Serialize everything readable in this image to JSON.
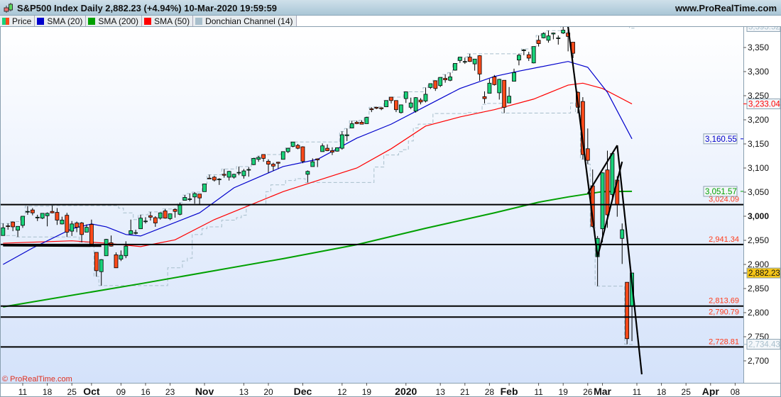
{
  "header": {
    "title": "S&P500 Index Daily 2,882.23 (+4.94%) 10-Mar-2020 19:59:59",
    "site": "www.ProRealTime.com",
    "copyright": "© ProRealTime.com"
  },
  "legend": [
    {
      "label": "Price",
      "color": "#19d27a",
      "color2": "#ff4a1a"
    },
    {
      "label": "SMA (20)",
      "color": "#0000cc"
    },
    {
      "label": "SMA (200)",
      "color": "#00a000"
    },
    {
      "label": "SMA (50)",
      "color": "#ff0000"
    },
    {
      "label": "Donchian Channel (14)",
      "color": "#a8bfcc"
    }
  ],
  "chart_data": {
    "type": "candlestick",
    "title": "S&P500 Index Daily",
    "ylim": [
      2650,
      3420
    ],
    "grid": false,
    "colors": {
      "up": "#19d27a",
      "down": "#ff4a1a",
      "sma20": "#0000cc",
      "sma50": "#ff0000",
      "sma200": "#00a000",
      "donchian": "#a8bfcc",
      "levels": "#000000",
      "level_labels": "#ff3b1a",
      "price_tag": "#f5c518"
    },
    "yticks": [
      "3,350",
      "3,300",
      "3,250",
      "3,200",
      "3,150",
      "3,100",
      "3,050",
      "3,000",
      "2,950",
      "2,900",
      "2,850",
      "2,800",
      "2,750",
      "2,700"
    ],
    "ytick_values": [
      3350,
      3300,
      3250,
      3200,
      3150,
      3100,
      3050,
      3000,
      2950,
      2900,
      2850,
      2800,
      2750,
      2700
    ],
    "xticks": [
      [
        "11",
        "2019-09-11"
      ],
      [
        "18",
        "2019-09-18"
      ],
      [
        "25",
        "2019-09-25"
      ],
      [
        "Oct",
        "2019-10-01"
      ],
      [
        "09",
        "2019-10-09"
      ],
      [
        "16",
        "2019-10-16"
      ],
      [
        "23",
        "2019-10-23"
      ],
      [
        "Nov",
        "2019-11-01"
      ],
      [
        "13",
        "2019-11-13"
      ],
      [
        "20",
        "2019-11-20"
      ],
      [
        "Dec",
        "2019-12-02"
      ],
      [
        "12",
        "2019-12-12"
      ],
      [
        "19",
        "2019-12-19"
      ],
      [
        "2020",
        "2020-01-02"
      ],
      [
        "13",
        "2020-01-13"
      ],
      [
        "21",
        "2020-01-21"
      ],
      [
        "28",
        "2020-01-28"
      ],
      [
        "Feb",
        "2020-02-03"
      ],
      [
        "11",
        "2020-02-11"
      ],
      [
        "19",
        "2020-02-19"
      ],
      [
        "26",
        "2020-02-26"
      ],
      [
        "Mar",
        "2020-03-02"
      ],
      [
        "11",
        "2020-03-11"
      ],
      [
        "18",
        "2020-03-18"
      ],
      [
        "25",
        "2020-03-25"
      ],
      [
        "Apr",
        "2020-04-01"
      ],
      [
        "08",
        "2020-04-08"
      ]
    ],
    "candles_columns": [
      "date",
      "open",
      "high",
      "low",
      "close"
    ],
    "candles": [
      [
        "2019-09-05",
        2960,
        2985,
        2960,
        2976
      ],
      [
        "2019-09-06",
        2980,
        2985,
        2972,
        2979
      ],
      [
        "2019-09-09",
        2988,
        2989,
        2969,
        2978
      ],
      [
        "2019-09-10",
        2971,
        2979,
        2957,
        2979
      ],
      [
        "2019-09-11",
        2981,
        3000,
        2976,
        3000
      ],
      [
        "2019-09-12",
        3010,
        3021,
        3003,
        3010
      ],
      [
        "2019-09-13",
        3013,
        3017,
        3002,
        3007
      ],
      [
        "2019-09-16",
        2997,
        3003,
        2990,
        2998
      ],
      [
        "2019-09-17",
        2996,
        3006,
        2994,
        3006
      ],
      [
        "2019-09-18",
        3001,
        3008,
        2979,
        3006
      ],
      [
        "2019-09-19",
        3010,
        3022,
        3006,
        3007
      ],
      [
        "2019-09-20",
        3008,
        3017,
        2982,
        2992
      ],
      [
        "2019-09-23",
        2984,
        2999,
        2983,
        2992
      ],
      [
        "2019-09-24",
        3002,
        3007,
        2957,
        2967
      ],
      [
        "2019-09-25",
        2969,
        2990,
        2959,
        2984
      ],
      [
        "2019-09-26",
        2986,
        2989,
        2967,
        2977
      ],
      [
        "2019-09-27",
        2986,
        2988,
        2946,
        2962
      ],
      [
        "2019-09-30",
        2967,
        2983,
        2967,
        2977
      ],
      [
        "2019-10-01",
        2983,
        2993,
        2938,
        2940
      ],
      [
        "2019-10-02",
        2925,
        2925,
        2875,
        2887
      ],
      [
        "2019-10-03",
        2885,
        2911,
        2856,
        2910
      ],
      [
        "2019-10-04",
        2918,
        2953,
        2918,
        2952
      ],
      [
        "2019-10-07",
        2945,
        2960,
        2937,
        2938
      ],
      [
        "2019-10-08",
        2920,
        2925,
        2893,
        2893
      ],
      [
        "2019-10-09",
        2911,
        2929,
        2907,
        2919
      ],
      [
        "2019-10-10",
        2918,
        2948,
        2913,
        2938
      ],
      [
        "2019-10-11",
        2963,
        2993,
        2963,
        2970
      ],
      [
        "2019-10-14",
        2965,
        2972,
        2962,
        2966
      ],
      [
        "2019-10-15",
        2974,
        3003,
        2974,
        2996
      ],
      [
        "2019-10-16",
        2989,
        2998,
        2985,
        2990
      ],
      [
        "2019-10-17",
        3001,
        3009,
        2991,
        2998
      ],
      [
        "2019-10-18",
        2997,
        3000,
        2978,
        2986
      ],
      [
        "2019-10-21",
        2996,
        3008,
        2993,
        3007
      ],
      [
        "2019-10-22",
        3011,
        3015,
        2995,
        2996
      ],
      [
        "2019-10-23",
        2995,
        3005,
        2992,
        3005
      ],
      [
        "2019-10-24",
        3014,
        3016,
        2997,
        3010
      ],
      [
        "2019-10-25",
        3004,
        3028,
        3002,
        3023
      ],
      [
        "2019-10-28",
        3033,
        3044,
        3033,
        3039
      ],
      [
        "2019-10-29",
        3036,
        3047,
        3031,
        3036
      ],
      [
        "2019-10-30",
        3040,
        3050,
        3026,
        3047
      ],
      [
        "2019-10-31",
        3046,
        3046,
        3024,
        3038
      ],
      [
        "2019-11-01",
        3051,
        3067,
        3051,
        3067
      ],
      [
        "2019-11-04",
        3079,
        3086,
        3078,
        3078
      ],
      [
        "2019-11-05",
        3081,
        3084,
        3072,
        3075
      ],
      [
        "2019-11-06",
        3076,
        3079,
        3065,
        3077
      ],
      [
        "2019-11-07",
        3087,
        3098,
        3080,
        3085
      ],
      [
        "2019-11-08",
        3081,
        3094,
        3074,
        3093
      ],
      [
        "2019-11-11",
        3081,
        3088,
        3078,
        3087
      ],
      [
        "2019-11-12",
        3090,
        3103,
        3085,
        3091
      ],
      [
        "2019-11-13",
        3084,
        3098,
        3078,
        3094
      ],
      [
        "2019-11-14",
        3097,
        3102,
        3082,
        3097
      ],
      [
        "2019-11-15",
        3107,
        3121,
        3106,
        3120
      ],
      [
        "2019-11-18",
        3118,
        3125,
        3113,
        3122
      ],
      [
        "2019-11-19",
        3128,
        3128,
        3113,
        3120
      ],
      [
        "2019-11-20",
        3114,
        3118,
        3090,
        3108
      ],
      [
        "2019-11-21",
        3108,
        3111,
        3094,
        3104
      ],
      [
        "2019-11-22",
        3112,
        3113,
        3099,
        3110
      ],
      [
        "2019-11-25",
        3118,
        3133,
        3118,
        3134
      ],
      [
        "2019-11-26",
        3134,
        3142,
        3131,
        3141
      ],
      [
        "2019-11-27",
        3145,
        3154,
        3143,
        3154
      ],
      [
        "2019-11-29",
        3147,
        3150,
        3139,
        3141
      ],
      [
        "2019-12-02",
        3144,
        3145,
        3110,
        3114
      ],
      [
        "2019-12-03",
        3087,
        3095,
        3070,
        3093
      ],
      [
        "2019-12-04",
        3103,
        3120,
        3103,
        3113
      ],
      [
        "2019-12-05",
        3119,
        3120,
        3102,
        3117
      ],
      [
        "2019-12-06",
        3134,
        3151,
        3134,
        3146
      ],
      [
        "2019-12-09",
        3141,
        3149,
        3135,
        3136
      ],
      [
        "2019-12-10",
        3136,
        3143,
        3127,
        3133
      ],
      [
        "2019-12-11",
        3135,
        3143,
        3134,
        3142
      ],
      [
        "2019-12-12",
        3141,
        3176,
        3138,
        3169
      ],
      [
        "2019-12-13",
        3167,
        3182,
        3156,
        3169
      ],
      [
        "2019-12-16",
        3183,
        3198,
        3183,
        3192
      ],
      [
        "2019-12-17",
        3195,
        3198,
        3191,
        3192
      ],
      [
        "2019-12-18",
        3195,
        3199,
        3191,
        3191
      ],
      [
        "2019-12-19",
        3192,
        3206,
        3192,
        3205
      ],
      [
        "2019-12-20",
        3223,
        3226,
        3216,
        3221
      ],
      [
        "2019-12-23",
        3226,
        3227,
        3222,
        3224
      ],
      [
        "2019-12-24",
        3225,
        3226,
        3220,
        3223
      ],
      [
        "2019-12-26",
        3227,
        3240,
        3227,
        3240
      ],
      [
        "2019-12-27",
        3247,
        3247,
        3234,
        3240
      ],
      [
        "2019-12-30",
        3240,
        3240,
        3216,
        3221
      ],
      [
        "2019-12-31",
        3215,
        3231,
        3213,
        3231
      ],
      [
        "2020-01-02",
        3244,
        3258,
        3235,
        3258
      ],
      [
        "2020-01-03",
        3226,
        3246,
        3222,
        3235
      ],
      [
        "2020-01-06",
        3218,
        3247,
        3215,
        3246
      ],
      [
        "2020-01-07",
        3241,
        3245,
        3232,
        3237
      ],
      [
        "2020-01-08",
        3239,
        3267,
        3236,
        3253
      ],
      [
        "2020-01-09",
        3267,
        3275,
        3264,
        3275
      ],
      [
        "2020-01-10",
        3281,
        3282,
        3260,
        3265
      ],
      [
        "2020-01-13",
        3271,
        3288,
        3268,
        3288
      ],
      [
        "2020-01-14",
        3286,
        3294,
        3277,
        3283
      ],
      [
        "2020-01-15",
        3282,
        3298,
        3280,
        3289
      ],
      [
        "2020-01-16",
        3303,
        3317,
        3302,
        3317
      ],
      [
        "2020-01-17",
        3323,
        3330,
        3318,
        3330
      ],
      [
        "2020-01-21",
        3321,
        3329,
        3316,
        3321
      ],
      [
        "2020-01-22",
        3330,
        3337,
        3320,
        3321
      ],
      [
        "2020-01-23",
        3316,
        3326,
        3302,
        3326
      ],
      [
        "2020-01-24",
        3333,
        3334,
        3281,
        3295
      ],
      [
        "2020-01-27",
        3248,
        3259,
        3234,
        3244
      ],
      [
        "2020-01-28",
        3255,
        3285,
        3255,
        3276
      ],
      [
        "2020-01-29",
        3289,
        3293,
        3271,
        3273
      ],
      [
        "2020-01-30",
        3256,
        3285,
        3242,
        3284
      ],
      [
        "2020-01-31",
        3282,
        3282,
        3214,
        3226
      ],
      [
        "2020-02-03",
        3235,
        3268,
        3235,
        3249
      ],
      [
        "2020-02-04",
        3280,
        3306,
        3280,
        3298
      ],
      [
        "2020-02-05",
        3324,
        3337,
        3313,
        3334
      ],
      [
        "2020-02-06",
        3344,
        3347,
        3334,
        3345
      ],
      [
        "2020-02-07",
        3335,
        3341,
        3322,
        3328
      ],
      [
        "2020-02-10",
        3318,
        3352,
        3317,
        3352
      ],
      [
        "2020-02-11",
        3365,
        3375,
        3352,
        3358
      ],
      [
        "2020-02-12",
        3370,
        3381,
        3369,
        3379
      ],
      [
        "2020-02-13",
        3365,
        3385,
        3360,
        3374
      ],
      [
        "2020-02-14",
        3378,
        3381,
        3367,
        3380
      ],
      [
        "2020-02-18",
        3370,
        3375,
        3356,
        3370
      ],
      [
        "2020-02-19",
        3380,
        3393.52,
        3378,
        3386
      ],
      [
        "2020-02-20",
        3380,
        3390,
        3342,
        3373
      ],
      [
        "2020-02-21",
        3361,
        3361,
        3328,
        3338
      ],
      [
        "2020-02-24",
        3257,
        3259,
        3214,
        3226
      ],
      [
        "2020-02-25",
        3238,
        3247,
        3118,
        3128
      ],
      [
        "2020-02-26",
        3140,
        3182,
        3108,
        3116
      ],
      [
        "2020-02-27",
        3063,
        3097,
        2977,
        2979
      ],
      [
        "2020-02-28",
        2916,
        2959,
        2855,
        2954
      ],
      [
        "2020-03-02",
        2974,
        3091,
        2946,
        3090
      ],
      [
        "2020-03-03",
        3096,
        3136,
        2976,
        3003
      ],
      [
        "2020-03-04",
        3045,
        3130,
        3034,
        3130
      ],
      [
        "2020-03-05",
        3075,
        3083,
        2999,
        3024
      ],
      [
        "2020-03-06",
        2954,
        2985,
        2901,
        2972
      ],
      [
        "2020-03-09",
        2863,
        2863,
        2734.43,
        2746
      ],
      [
        "2020-03-10",
        2813,
        2882.23,
        2741,
        2882.23
      ]
    ],
    "sma20": [
      [
        "2019-09-05",
        2900
      ],
      [
        "2019-09-13",
        2934
      ],
      [
        "2019-09-25",
        2974
      ],
      [
        "2019-10-01",
        2984
      ],
      [
        "2019-10-04",
        2978
      ],
      [
        "2019-10-10",
        2962
      ],
      [
        "2019-10-15",
        2959
      ],
      [
        "2019-10-31",
        3007
      ],
      [
        "2019-11-11",
        3059
      ],
      [
        "2019-11-25",
        3103
      ],
      [
        "2019-12-05",
        3118
      ],
      [
        "2019-12-17",
        3162
      ],
      [
        "2019-12-27",
        3191
      ],
      [
        "2020-01-08",
        3228
      ],
      [
        "2020-01-17",
        3265
      ],
      [
        "2020-01-29",
        3290
      ],
      [
        "2020-02-05",
        3301
      ],
      [
        "2020-02-11",
        3309
      ],
      [
        "2020-02-20",
        3321
      ],
      [
        "2020-02-26",
        3309
      ],
      [
        "2020-03-03",
        3257
      ],
      [
        "2020-03-10",
        3160.55
      ]
    ],
    "sma50": [
      [
        "2019-09-05",
        2944
      ],
      [
        "2019-09-25",
        2949
      ],
      [
        "2019-10-04",
        2944
      ],
      [
        "2019-10-15",
        2937
      ],
      [
        "2019-10-24",
        2951
      ],
      [
        "2019-11-05",
        2993
      ],
      [
        "2019-11-14",
        3022
      ],
      [
        "2019-11-25",
        3051
      ],
      [
        "2019-12-05",
        3074
      ],
      [
        "2019-12-17",
        3100
      ],
      [
        "2019-12-27",
        3140
      ],
      [
        "2020-01-08",
        3187
      ],
      [
        "2020-01-17",
        3206
      ],
      [
        "2020-01-29",
        3221
      ],
      [
        "2020-02-10",
        3243
      ],
      [
        "2020-02-20",
        3272
      ],
      [
        "2020-02-25",
        3276
      ],
      [
        "2020-03-02",
        3265
      ],
      [
        "2020-03-10",
        3233.04
      ]
    ],
    "sma200": [
      [
        "2019-09-05",
        2812
      ],
      [
        "2019-10-15",
        2860
      ],
      [
        "2019-11-05",
        2887
      ],
      [
        "2019-11-25",
        2912
      ],
      [
        "2019-12-17",
        2941
      ],
      [
        "2020-01-08",
        2975
      ],
      [
        "2020-01-29",
        3007
      ],
      [
        "2020-02-11",
        3029
      ],
      [
        "2020-02-20",
        3040
      ],
      [
        "2020-03-02",
        3051
      ],
      [
        "2020-03-10",
        3051.57
      ]
    ],
    "donchian_period": 14,
    "levels": [
      {
        "value": 3024.09,
        "label": "3,024.09"
      },
      {
        "value": 2941.34,
        "label": "2,941.34"
      },
      {
        "value": 2813.69,
        "label": "2,813.69"
      },
      {
        "value": 2790.79,
        "label": "2,790.79"
      },
      {
        "value": 2728.81,
        "label": "2,728.81"
      }
    ],
    "trendlines": [
      [
        [
          "2019-09-05",
          2939
        ],
        [
          "2019-10-03",
          2938
        ]
      ],
      [
        [
          "2020-02-20",
          3393
        ],
        [
          "2020-02-28",
          2916
        ]
      ],
      [
        [
          "2020-02-26",
          3047
        ],
        [
          "2020-03-05",
          3147
        ]
      ],
      [
        [
          "2020-02-28",
          2916
        ],
        [
          "2020-03-06",
          3113
        ]
      ],
      [
        [
          "2020-03-05",
          3147
        ],
        [
          "2020-03-12",
          2672
        ]
      ]
    ],
    "axis_tags": [
      {
        "value": 3393.52,
        "label": "3,393.52",
        "kind": "donchian"
      },
      {
        "value": 3233.04,
        "label": "3,233.04",
        "kind": "sma50"
      },
      {
        "value": 3160.55,
        "label": "3,160.55",
        "kind": "sma20"
      },
      {
        "value": 3051.57,
        "label": "3,051.57",
        "kind": "sma200"
      },
      {
        "value": 2882.23,
        "label": "2,882.23",
        "kind": "price"
      },
      {
        "value": 2734.43,
        "label": "2,734.43",
        "kind": "donchian"
      }
    ]
  }
}
